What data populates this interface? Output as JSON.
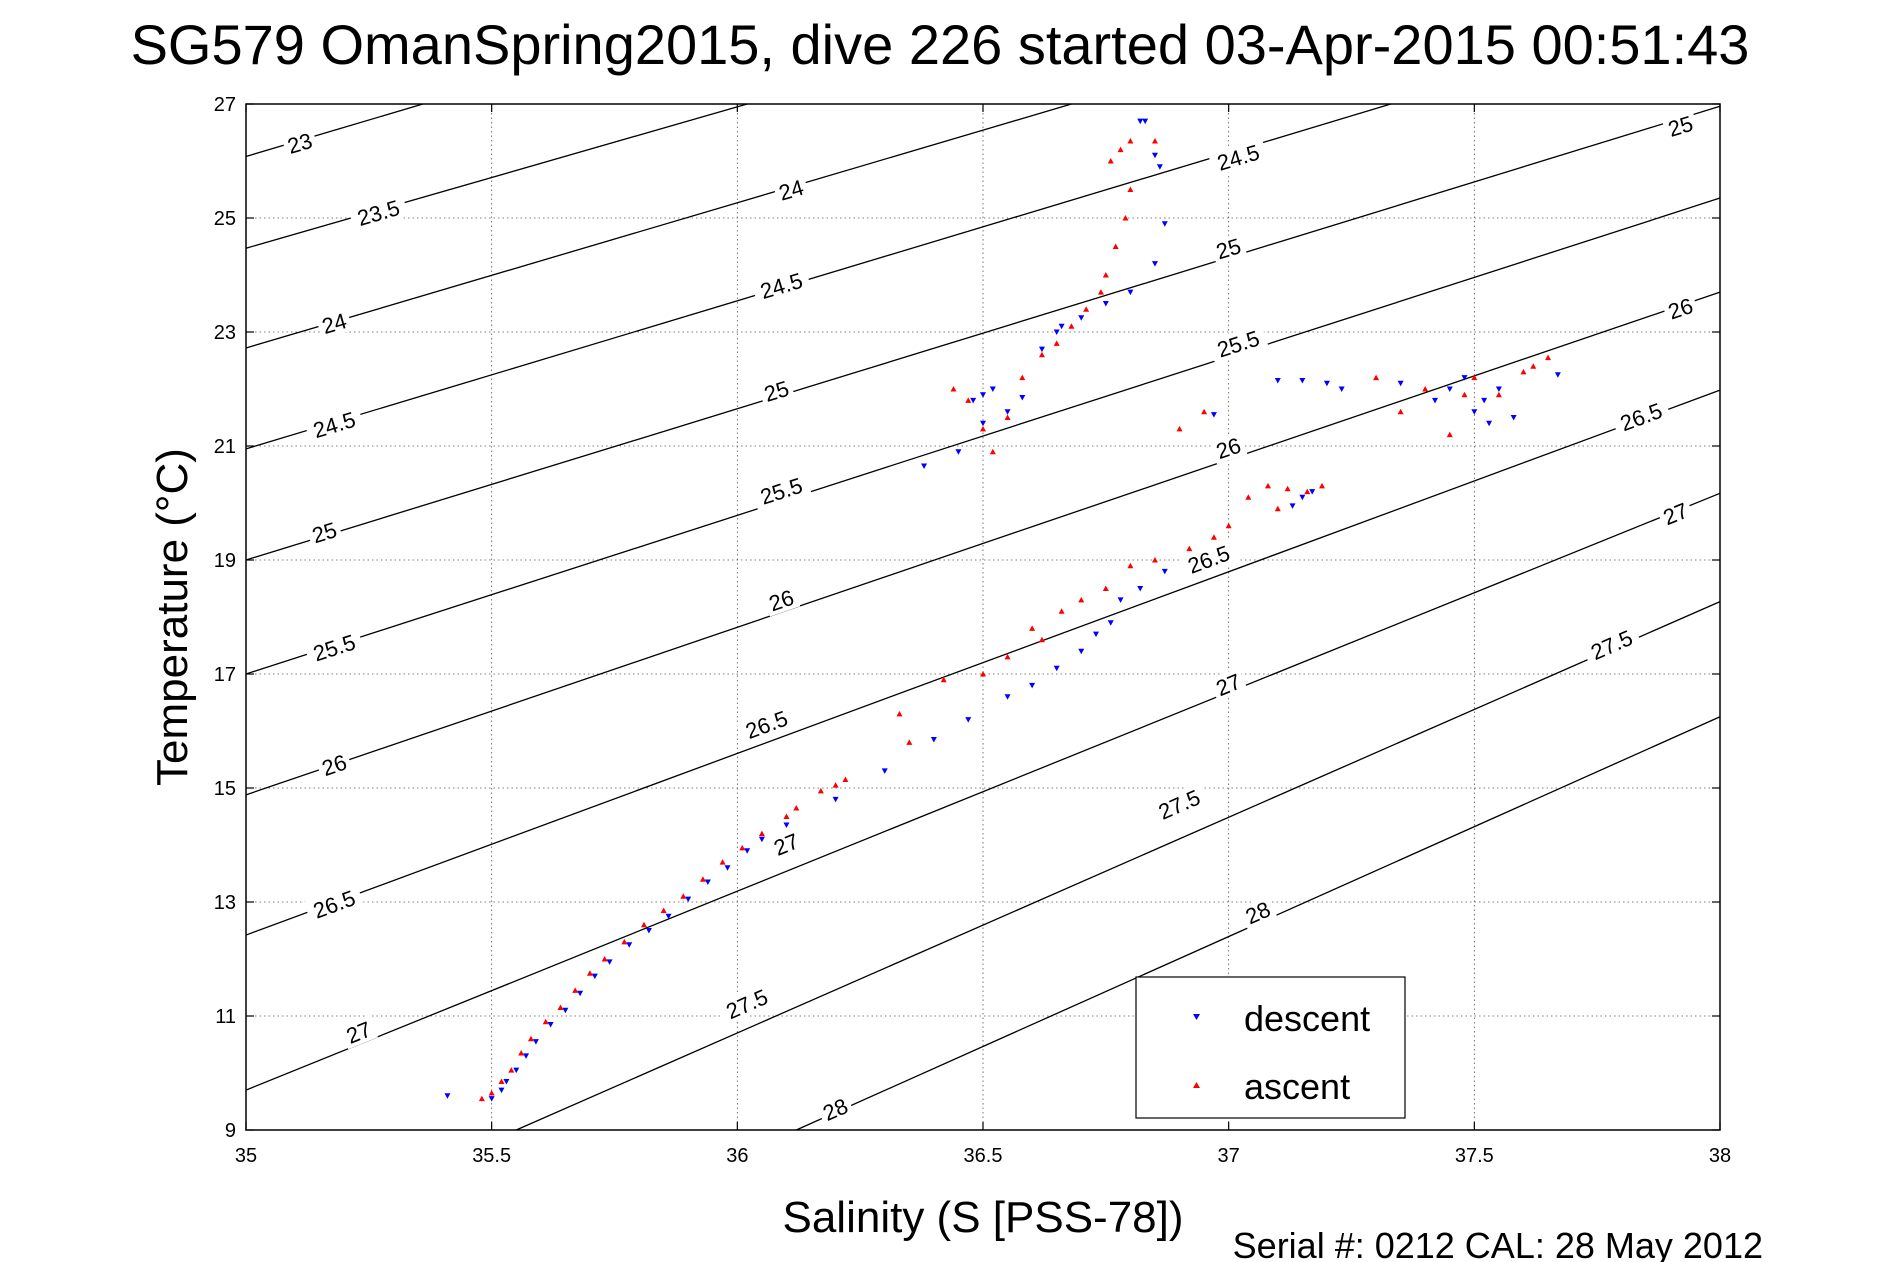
{
  "chart_data": {
    "type": "scatter",
    "title": "SG579 OmanSpring2015, dive 226 started 03-Apr-2015 00:51:43",
    "xlabel": "Salinity (S [PSS-78])",
    "ylabel": "Temperature (°C)",
    "xlim": [
      35,
      38
    ],
    "ylim": [
      9,
      27
    ],
    "x_ticks": [
      35,
      35.5,
      36,
      36.5,
      37,
      37.5,
      38
    ],
    "x_tick_labels": [
      "35",
      "35.5",
      "36",
      "36.5",
      "37",
      "37.5",
      "38"
    ],
    "y_ticks": [
      9,
      11,
      13,
      15,
      17,
      19,
      21,
      23,
      25,
      27
    ],
    "y_tick_labels": [
      "9",
      "11",
      "13",
      "15",
      "17",
      "19",
      "21",
      "23",
      "25",
      "27"
    ],
    "grid": true,
    "legend_position": "bottom-right",
    "footer": "Serial #: 0212  CAL: 28 May 2012",
    "density_contours": [
      {
        "label": "23",
        "points": [
          [
            35.0,
            26.08
          ],
          [
            35.36,
            27.0
          ]
        ],
        "label_at": [
          35.11,
          26.3
        ]
      },
      {
        "label": "23.5",
        "points": [
          [
            35.0,
            24.47
          ],
          [
            36.02,
            27.0
          ]
        ],
        "label_at": [
          35.27,
          25.08
        ]
      },
      {
        "label": "24",
        "points": [
          [
            35.0,
            22.72
          ],
          [
            36.68,
            27.0
          ]
        ],
        "label_at": [
          35.18,
          23.14
        ],
        "label2": "24",
        "label2_at": [
          36.11,
          25.48
        ]
      },
      {
        "label": "24.5",
        "points": [
          [
            35.0,
            20.95
          ],
          [
            37.33,
            27.0
          ]
        ],
        "label_at": [
          35.18,
          21.36
        ],
        "label2": "24.5",
        "label2_at": [
          36.09,
          23.8
        ],
        "label3": "24.5",
        "label3_at": [
          37.02,
          26.05
        ]
      },
      {
        "label": "25",
        "points": [
          [
            35.0,
            19.0
          ],
          [
            38.0,
            26.96
          ]
        ],
        "label_at": [
          35.16,
          19.47
        ],
        "label2": "25",
        "label2_at": [
          36.08,
          21.95
        ],
        "label3": "25",
        "label3_at": [
          37.0,
          24.45
        ],
        "label4": "25",
        "label4_at": [
          37.92,
          26.6
        ]
      },
      {
        "label": "25.5",
        "points": [
          [
            35.0,
            17.0
          ],
          [
            38.0,
            25.35
          ]
        ],
        "label_at": [
          35.18,
          17.45
        ],
        "label2": "25.5",
        "label2_at": [
          36.09,
          20.2
        ],
        "label3": "25.5",
        "label3_at": [
          37.02,
          22.78
        ]
      },
      {
        "label": "26",
        "points": [
          [
            35.0,
            14.88
          ],
          [
            38.0,
            23.7
          ]
        ],
        "label_at": [
          35.18,
          15.39
        ],
        "label2": "26",
        "label2_at": [
          36.09,
          18.28
        ],
        "label3": "26",
        "label3_at": [
          37.0,
          20.95
        ],
        "label4": "26",
        "label4_at": [
          37.92,
          23.4
        ]
      },
      {
        "label": "26.5",
        "points": [
          [
            35.0,
            12.42
          ],
          [
            38.0,
            21.98
          ]
        ],
        "label_at": [
          35.18,
          12.95
        ],
        "label2": "26.5",
        "label2_at": [
          36.06,
          16.1
        ],
        "label3": "26.5",
        "label3_at": [
          36.96,
          19.0
        ],
        "label4": "26.5",
        "label4_at": [
          37.84,
          21.5
        ]
      },
      {
        "label": "27",
        "points": [
          [
            35.0,
            9.7
          ],
          [
            38.0,
            20.17
          ]
        ],
        "label_at": [
          35.23,
          10.7
        ],
        "label2": "27",
        "label2_at": [
          36.1,
          14.0
        ],
        "label3": "27",
        "label3_at": [
          37.0,
          16.8
        ],
        "label4": "27",
        "label4_at": [
          37.91,
          19.8
        ]
      },
      {
        "label": "27.5",
        "points": [
          [
            35.55,
            9.0
          ],
          [
            38.0,
            18.27
          ]
        ],
        "label_at": [
          36.02,
          11.2
        ],
        "label2": "27.5",
        "label2_at": [
          36.9,
          14.7
        ],
        "label3": "27.5",
        "label3_at": [
          37.78,
          17.5
        ]
      },
      {
        "label": "28",
        "points": [
          [
            36.12,
            9.0
          ],
          [
            38.0,
            16.25
          ]
        ],
        "label_at": [
          36.2,
          9.35
        ],
        "label2": "28",
        "label2_at": [
          37.06,
          12.8
        ]
      }
    ],
    "series": [
      {
        "name": "descent",
        "color": "#0000ff",
        "marker": "triangle-down",
        "points": [
          [
            35.41,
            9.6
          ],
          [
            35.5,
            9.55
          ],
          [
            35.52,
            9.7
          ],
          [
            35.53,
            9.85
          ],
          [
            35.55,
            10.05
          ],
          [
            35.57,
            10.3
          ],
          [
            35.59,
            10.55
          ],
          [
            35.62,
            10.85
          ],
          [
            35.65,
            11.1
          ],
          [
            35.68,
            11.4
          ],
          [
            35.71,
            11.7
          ],
          [
            35.74,
            11.95
          ],
          [
            35.78,
            12.25
          ],
          [
            35.82,
            12.5
          ],
          [
            35.86,
            12.75
          ],
          [
            35.9,
            13.05
          ],
          [
            35.94,
            13.35
          ],
          [
            35.98,
            13.6
          ],
          [
            36.02,
            13.9
          ],
          [
            36.05,
            14.1
          ],
          [
            36.1,
            14.35
          ],
          [
            36.2,
            14.8
          ],
          [
            36.3,
            15.3
          ],
          [
            36.4,
            15.85
          ],
          [
            36.47,
            16.2
          ],
          [
            36.55,
            16.6
          ],
          [
            36.6,
            16.8
          ],
          [
            36.65,
            17.1
          ],
          [
            36.7,
            17.4
          ],
          [
            36.73,
            17.7
          ],
          [
            36.76,
            17.9
          ],
          [
            36.78,
            18.3
          ],
          [
            36.82,
            18.5
          ],
          [
            36.87,
            18.8
          ],
          [
            36.38,
            20.65
          ],
          [
            36.45,
            20.9
          ],
          [
            36.5,
            21.4
          ],
          [
            36.48,
            21.8
          ],
          [
            36.52,
            22.0
          ],
          [
            36.5,
            21.9
          ],
          [
            36.55,
            21.6
          ],
          [
            36.58,
            21.85
          ],
          [
            36.62,
            22.7
          ],
          [
            36.65,
            23.0
          ],
          [
            36.66,
            23.1
          ],
          [
            36.7,
            23.25
          ],
          [
            36.75,
            23.5
          ],
          [
            36.8,
            23.7
          ],
          [
            36.85,
            24.2
          ],
          [
            36.87,
            24.9
          ],
          [
            36.86,
            25.9
          ],
          [
            36.85,
            26.1
          ],
          [
            36.82,
            26.7
          ],
          [
            36.83,
            26.7
          ],
          [
            37.1,
            22.15
          ],
          [
            37.15,
            22.15
          ],
          [
            37.2,
            22.1
          ],
          [
            37.23,
            22.0
          ],
          [
            37.35,
            22.1
          ],
          [
            37.42,
            21.8
          ],
          [
            37.45,
            22.0
          ],
          [
            37.48,
            22.2
          ],
          [
            37.5,
            21.6
          ],
          [
            37.52,
            21.8
          ],
          [
            37.53,
            21.4
          ],
          [
            37.55,
            22.0
          ],
          [
            37.58,
            21.5
          ],
          [
            37.67,
            22.25
          ],
          [
            37.13,
            19.95
          ],
          [
            37.15,
            20.1
          ],
          [
            37.17,
            20.2
          ],
          [
            36.97,
            21.55
          ]
        ]
      },
      {
        "name": "ascent",
        "color": "#ff0000",
        "marker": "triangle-up",
        "points": [
          [
            35.48,
            9.55
          ],
          [
            35.5,
            9.65
          ],
          [
            35.52,
            9.85
          ],
          [
            35.54,
            10.05
          ],
          [
            35.56,
            10.35
          ],
          [
            35.58,
            10.6
          ],
          [
            35.61,
            10.9
          ],
          [
            35.64,
            11.15
          ],
          [
            35.67,
            11.45
          ],
          [
            35.7,
            11.75
          ],
          [
            35.73,
            12.0
          ],
          [
            35.77,
            12.3
          ],
          [
            35.81,
            12.6
          ],
          [
            35.85,
            12.85
          ],
          [
            35.89,
            13.1
          ],
          [
            35.93,
            13.4
          ],
          [
            35.97,
            13.7
          ],
          [
            36.01,
            13.95
          ],
          [
            36.05,
            14.2
          ],
          [
            36.1,
            14.5
          ],
          [
            36.12,
            14.65
          ],
          [
            36.17,
            14.95
          ],
          [
            36.2,
            15.05
          ],
          [
            36.22,
            15.15
          ],
          [
            36.35,
            15.8
          ],
          [
            36.33,
            16.3
          ],
          [
            36.42,
            16.9
          ],
          [
            36.5,
            17.0
          ],
          [
            36.55,
            17.3
          ],
          [
            36.6,
            17.8
          ],
          [
            36.62,
            17.6
          ],
          [
            36.66,
            18.1
          ],
          [
            36.7,
            18.3
          ],
          [
            36.75,
            18.5
          ],
          [
            36.8,
            18.9
          ],
          [
            36.85,
            19.0
          ],
          [
            36.92,
            19.2
          ],
          [
            36.97,
            19.4
          ],
          [
            37.0,
            19.6
          ],
          [
            37.04,
            20.1
          ],
          [
            37.08,
            20.3
          ],
          [
            37.1,
            19.9
          ],
          [
            37.12,
            20.25
          ],
          [
            37.16,
            20.2
          ],
          [
            37.19,
            20.3
          ],
          [
            36.44,
            22.0
          ],
          [
            36.47,
            21.8
          ],
          [
            36.5,
            21.3
          ],
          [
            36.52,
            20.9
          ],
          [
            36.55,
            21.5
          ],
          [
            36.58,
            22.2
          ],
          [
            36.62,
            22.6
          ],
          [
            36.65,
            22.8
          ],
          [
            36.68,
            23.1
          ],
          [
            36.71,
            23.4
          ],
          [
            36.74,
            23.7
          ],
          [
            36.75,
            24.0
          ],
          [
            36.77,
            24.5
          ],
          [
            36.79,
            25.0
          ],
          [
            36.8,
            25.5
          ],
          [
            36.76,
            26.0
          ],
          [
            36.78,
            26.2
          ],
          [
            36.8,
            26.35
          ],
          [
            36.85,
            26.35
          ],
          [
            36.9,
            21.3
          ],
          [
            36.95,
            21.6
          ],
          [
            37.3,
            22.2
          ],
          [
            37.35,
            21.6
          ],
          [
            37.4,
            22.0
          ],
          [
            37.45,
            21.2
          ],
          [
            37.5,
            22.2
          ],
          [
            37.55,
            21.9
          ],
          [
            37.6,
            22.3
          ],
          [
            37.62,
            22.4
          ],
          [
            37.65,
            22.55
          ],
          [
            37.48,
            21.9
          ]
        ]
      }
    ]
  }
}
